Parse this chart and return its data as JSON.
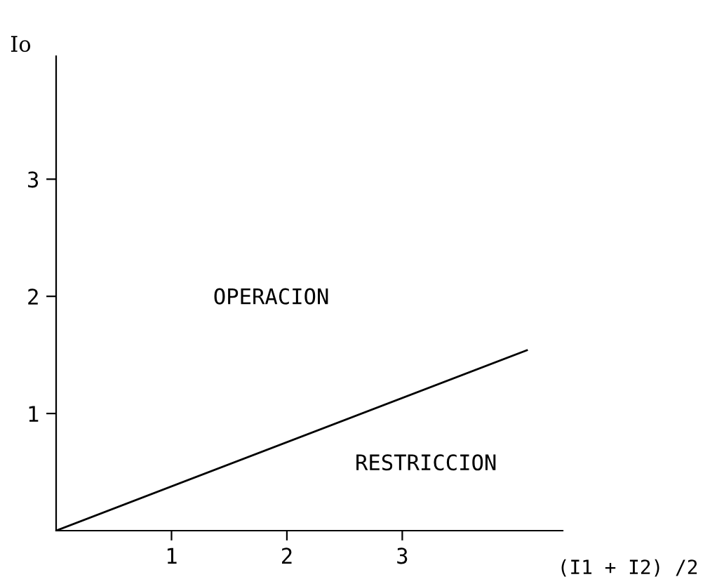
{
  "chart_data": {
    "type": "line",
    "xlabel": "(I1 + I2) /2",
    "ylabel": "Io",
    "x": [
      0,
      4.08
    ],
    "series": [
      {
        "color": "#000000",
        "values": [
          0,
          1.54
        ]
      }
    ],
    "xlim": [
      0,
      4.39
    ],
    "ylim": [
      0,
      4.05
    ],
    "xticks": [
      1,
      2,
      3
    ],
    "yticks": [
      1,
      2,
      3
    ],
    "annotations": [
      "OPERACION",
      "RESTRICCION"
    ],
    "grid": false,
    "legend": false,
    "marker": "none",
    "line_style": "solid"
  }
}
